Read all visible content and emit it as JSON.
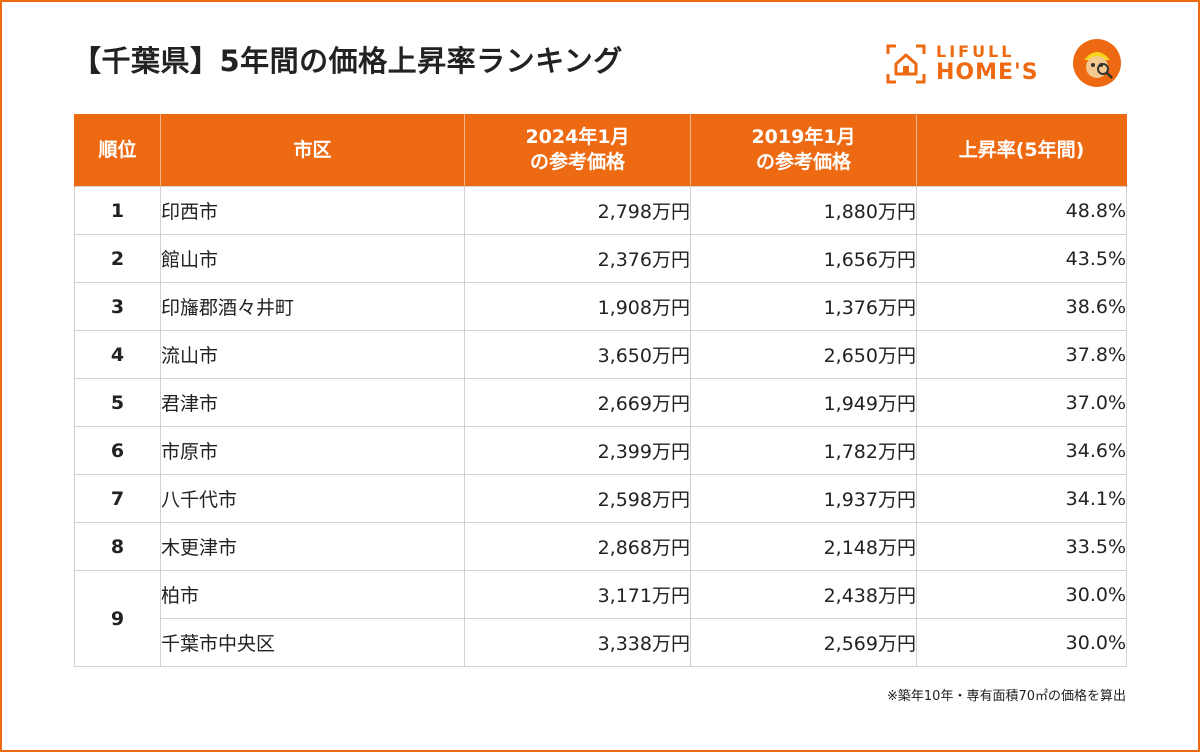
{
  "title": "【千葉県】5年間の価格上昇率ランキング",
  "brand": {
    "line1": "LIFULL",
    "line2": "HOME'S",
    "color": "#ee6a12"
  },
  "chart_data": {
    "type": "table",
    "columns": [
      "順位",
      "市区",
      "2024年1月\nの参考価格",
      "2019年1月\nの参考価格",
      "上昇率(5年間)"
    ],
    "rows": [
      {
        "rank": "1",
        "city": "印西市",
        "price_2024": "2,798万円",
        "price_2019": "1,880万円",
        "rate": "48.8%"
      },
      {
        "rank": "2",
        "city": "館山市",
        "price_2024": "2,376万円",
        "price_2019": "1,656万円",
        "rate": "43.5%"
      },
      {
        "rank": "3",
        "city": "印旛郡酒々井町",
        "price_2024": "1,908万円",
        "price_2019": "1,376万円",
        "rate": "38.6%"
      },
      {
        "rank": "4",
        "city": "流山市",
        "price_2024": "3,650万円",
        "price_2019": "2,650万円",
        "rate": "37.8%"
      },
      {
        "rank": "5",
        "city": "君津市",
        "price_2024": "2,669万円",
        "price_2019": "1,949万円",
        "rate": "37.0%"
      },
      {
        "rank": "6",
        "city": "市原市",
        "price_2024": "2,399万円",
        "price_2019": "1,782万円",
        "rate": "34.6%"
      },
      {
        "rank": "7",
        "city": "八千代市",
        "price_2024": "2,598万円",
        "price_2019": "1,937万円",
        "rate": "34.1%"
      },
      {
        "rank": "8",
        "city": "木更津市",
        "price_2024": "2,868万円",
        "price_2019": "2,148万円",
        "rate": "33.5%"
      },
      {
        "rank": "9",
        "city": "柏市",
        "price_2024": "3,171万円",
        "price_2019": "2,438万円",
        "rate": "30.0%"
      },
      {
        "rank": "9",
        "city": "千葉市中央区",
        "price_2024": "3,338万円",
        "price_2019": "2,569万円",
        "rate": "30.0%"
      }
    ]
  },
  "header": {
    "rank": "順位",
    "city": "市区",
    "price_2024_line1": "2024年1月",
    "price_2024_line2": "の参考価格",
    "price_2019_line1": "2019年1月",
    "price_2019_line2": "の参考価格",
    "rate": "上昇率(5年間)"
  },
  "note": "※築年10年・専有面積70㎡の価格を算出"
}
